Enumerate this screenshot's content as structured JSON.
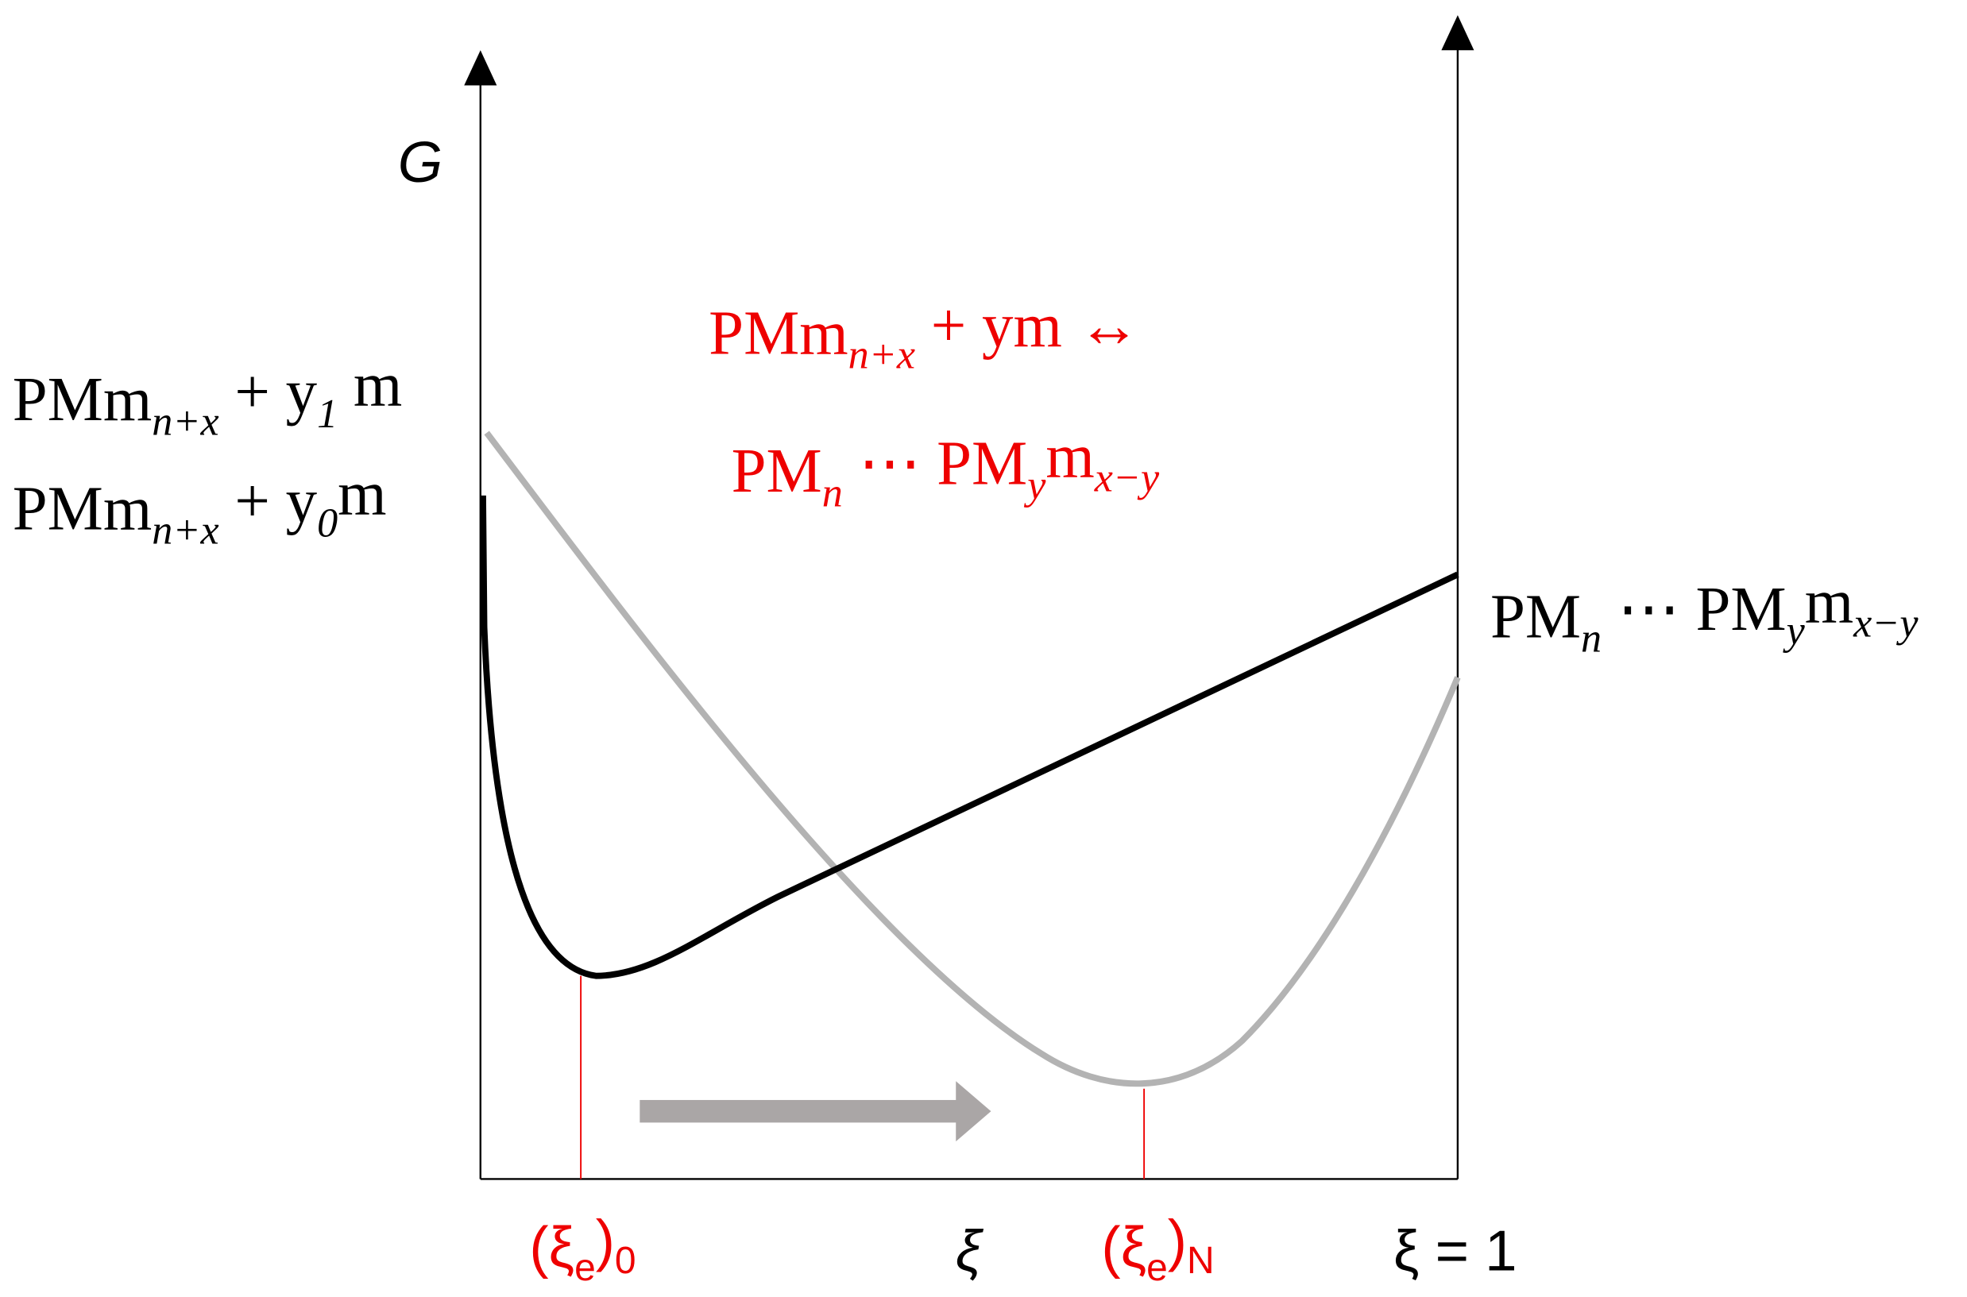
{
  "axes": {
    "y_label": "G",
    "x_label": "ξ",
    "x_end_label": "ξ = 1"
  },
  "left_labels": [
    {
      "segments": [
        {
          "text": "PMm",
          "sub": "n+x"
        },
        {
          "text": " + y",
          "sub": "1"
        },
        {
          "text": " m"
        }
      ]
    },
    {
      "segments": [
        {
          "text": "PMm",
          "sub": "n+x"
        },
        {
          "text": " + y",
          "sub": "0"
        },
        {
          "text": "m"
        }
      ]
    }
  ],
  "reaction": [
    {
      "segments": [
        {
          "text": "PMm",
          "sub": "n+x"
        },
        {
          "text": " + ym ↔"
        }
      ]
    },
    {
      "segments": [
        {
          "text": "PM",
          "sub": "n"
        },
        {
          "text": " ⋯ PM",
          "sub": "y"
        },
        {
          "text": "m",
          "sub": "x−y"
        }
      ]
    }
  ],
  "right_label": {
    "segments": [
      {
        "text": "PM",
        "sub": "n"
      },
      {
        "text": " ⋯ PM",
        "sub": "y"
      },
      {
        "text": "m",
        "sub": "x−y"
      }
    ]
  },
  "minima": [
    {
      "segments": [
        {
          "text": "(ξ",
          "sub": "e"
        },
        {
          "text": ")",
          "sub": "0"
        }
      ]
    },
    {
      "segments": [
        {
          "text": "(ξ",
          "sub": "e"
        },
        {
          "text": ")",
          "sub": "N"
        }
      ]
    }
  ]
}
